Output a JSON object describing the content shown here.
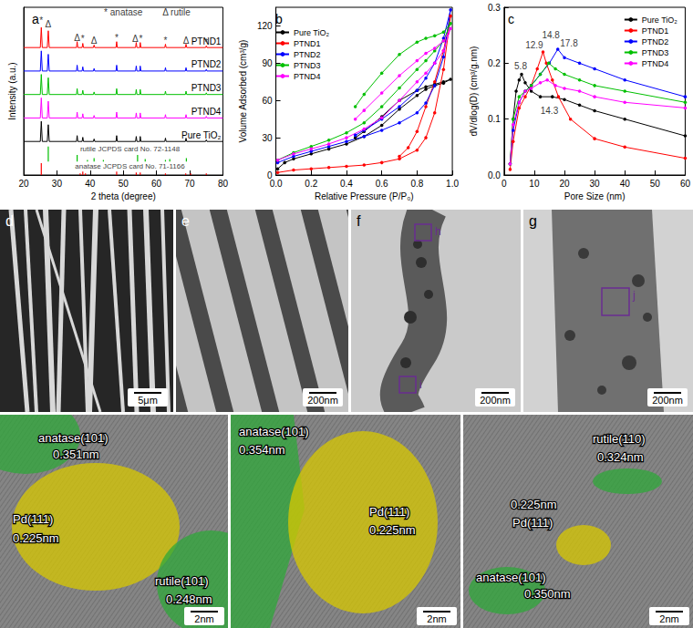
{
  "chart_data": [
    {
      "panel": "a",
      "type": "line",
      "x_label": "2 theta (degree)",
      "y_label": "Intensity (a.u.)",
      "xlim": [
        20,
        80
      ],
      "xticks": [
        20,
        30,
        40,
        50,
        60,
        70,
        80
      ],
      "ylim": [
        0,
        100
      ],
      "yticks": [],
      "tick_labels": "x",
      "grid": false,
      "marker": "none",
      "x": [
        20,
        25.0,
        25.3,
        25.6,
        27.1,
        27.4,
        27.7,
        35.9,
        36.1,
        36.3,
        37.6,
        37.8,
        38.0,
        41.0,
        41.2,
        41.4,
        47.8,
        48.0,
        48.2,
        53.7,
        53.9,
        54.1,
        55.0,
        55.1,
        55.3,
        62.5,
        62.7,
        62.9,
        68.7,
        68.9,
        69.1,
        74.8,
        75.0,
        75.2,
        80
      ],
      "series": [
        {
          "name": "PTND1",
          "color": "#ff0000",
          "values": [
            76,
            76,
            88,
            76,
            76,
            86,
            76,
            76,
            79.5,
            76,
            76,
            78.5,
            76,
            76,
            77.5,
            76,
            76,
            79.5,
            76,
            76,
            79,
            76,
            76,
            79,
            76,
            76,
            78,
            76,
            76,
            78,
            76,
            76,
            77,
            76,
            76
          ]
        },
        {
          "name": "PTND2",
          "color": "#0000ff",
          "values": [
            62,
            62,
            74,
            62,
            62,
            72,
            62,
            62,
            65.5,
            62,
            62,
            64.5,
            62,
            62,
            63.5,
            62,
            62,
            65.5,
            62,
            62,
            65,
            62,
            62,
            65,
            62,
            62,
            64,
            62,
            62,
            64,
            62,
            62,
            63,
            62,
            62
          ]
        },
        {
          "name": "PTND3",
          "color": "#00c000",
          "values": [
            48,
            48,
            60,
            48,
            48,
            58,
            48,
            48,
            51.5,
            48,
            48,
            50.5,
            48,
            48,
            49.5,
            48,
            48,
            51.5,
            48,
            48,
            51,
            48,
            48,
            51,
            48,
            48,
            50,
            48,
            48,
            50,
            48,
            48,
            49,
            48,
            48
          ]
        },
        {
          "name": "PTND4",
          "color": "#ff00ff",
          "values": [
            34,
            34,
            46,
            34,
            34,
            44,
            34,
            34,
            37.5,
            34,
            34,
            36.5,
            34,
            34,
            35.5,
            34,
            34,
            37.5,
            34,
            34,
            37,
            34,
            34,
            37,
            34,
            34,
            36,
            34,
            34,
            36,
            34,
            34,
            35,
            34,
            34
          ]
        },
        {
          "name": "Pure TiO₂",
          "color": "#000000",
          "values": [
            20,
            20,
            32,
            20,
            20,
            30,
            20,
            20,
            23.5,
            20,
            20,
            22.5,
            20,
            20,
            21.5,
            20,
            20,
            23.5,
            20,
            20,
            23,
            20,
            20,
            23,
            20,
            20,
            22,
            20,
            20,
            22,
            20,
            20,
            21,
            20,
            20
          ]
        }
      ],
      "references": [
        {
          "label": {
            "text": "rutile JCPDS card No. 72-1148",
            "x": 52,
            "y": 15.5
          },
          "color": "#00c000",
          "baseline": 8,
          "positions": [
            27.4,
            36.1,
            39.2,
            41.2,
            44.0,
            54.3,
            56.6,
            62.7,
            64.0,
            69.0
          ],
          "heights": [
            9,
            4,
            1,
            2,
            1,
            4,
            1.5,
            1,
            1.5,
            2
          ]
        },
        {
          "label": {
            "text": "anatase JCPDS card No. 71-1166",
            "x": 52,
            "y": 5
          },
          "color": "#ff0000",
          "baseline": 0,
          "positions": [
            25.3,
            37.0,
            37.8,
            38.6,
            48.0,
            53.9,
            55.1,
            62.7,
            68.8,
            70.3,
            75.0
          ],
          "heights": [
            7,
            1,
            2,
            1,
            2,
            1.5,
            1.5,
            1,
            1,
            1,
            1
          ]
        }
      ],
      "annotations": [
        {
          "text": "* anatase",
          "x": 50,
          "y": 97
        },
        {
          "text": "Δ rutile",
          "x": 66,
          "y": 97
        },
        {
          "text": "*",
          "x": 25.3,
          "y": 92
        },
        {
          "text": "Δ",
          "x": 27.4,
          "y": 90
        },
        {
          "text": "Δ",
          "x": 36.1,
          "y": 82
        },
        {
          "text": "*",
          "x": 37.8,
          "y": 81
        },
        {
          "text": "Δ",
          "x": 41.2,
          "y": 80
        },
        {
          "text": "*",
          "x": 48.0,
          "y": 82
        },
        {
          "text": "Δ",
          "x": 53.6,
          "y": 81
        },
        {
          "text": "*",
          "x": 55.3,
          "y": 81
        },
        {
          "text": "*",
          "x": 62.7,
          "y": 80
        },
        {
          "text": "Δ",
          "x": 68.9,
          "y": 80
        },
        {
          "text": "*",
          "x": 75.0,
          "y": 79
        }
      ]
    },
    {
      "panel": "b",
      "type": "line",
      "x_label": "Relative Pressure (P/P₀)",
      "y_label": "Volume Adsorbed (cm³/g)",
      "xlim": [
        0,
        1
      ],
      "xticks": [
        {
          "value": 0,
          "label": "0.0"
        },
        0.2,
        0.4,
        0.6,
        0.8,
        {
          "value": 1,
          "label": "1.0"
        }
      ],
      "ylim": [
        0,
        135
      ],
      "yticks": [
        0,
        30,
        60,
        90,
        120
      ],
      "grid": false,
      "legend": "upper left",
      "marker": "circle",
      "series": [
        {
          "name": "Pure TiO₂",
          "color": "#000000",
          "x": [
            0.01,
            0.05,
            0.1,
            0.2,
            0.3,
            0.4,
            0.5,
            0.6,
            0.7,
            0.8,
            0.85,
            0.9,
            0.95,
            0.99,
            0.95,
            0.9,
            0.85,
            0.8,
            0.7,
            0.6,
            0.5,
            0.45
          ],
          "values": [
            5,
            10,
            13,
            17,
            21,
            25,
            31,
            40,
            53,
            64,
            69,
            72,
            74,
            77,
            75,
            73,
            71,
            68,
            60,
            47,
            35,
            30
          ]
        },
        {
          "name": "PTND1",
          "color": "#ff0000",
          "x": [
            0.01,
            0.1,
            0.2,
            0.3,
            0.4,
            0.5,
            0.6,
            0.7,
            0.8,
            0.85,
            0.9,
            0.95,
            0.99,
            0.95,
            0.9,
            0.85,
            0.8,
            0.75,
            0.7
          ],
          "values": [
            2,
            4,
            5,
            6,
            7,
            8,
            10,
            13,
            20,
            30,
            50,
            85,
            128,
            100,
            75,
            55,
            35,
            22,
            15
          ]
        },
        {
          "name": "PTND2",
          "color": "#0000ff",
          "x": [
            0.01,
            0.1,
            0.2,
            0.3,
            0.4,
            0.5,
            0.6,
            0.7,
            0.8,
            0.85,
            0.9,
            0.95,
            0.99,
            0.95,
            0.9,
            0.85,
            0.8,
            0.7,
            0.6,
            0.5,
            0.45
          ],
          "values": [
            10,
            15,
            19,
            23,
            27,
            31,
            36,
            42,
            50,
            58,
            72,
            95,
            133,
            110,
            90,
            78,
            68,
            55,
            45,
            36,
            32
          ]
        },
        {
          "name": "PTND3",
          "color": "#00c000",
          "x": [
            0.01,
            0.1,
            0.2,
            0.3,
            0.4,
            0.5,
            0.6,
            0.7,
            0.8,
            0.85,
            0.9,
            0.95,
            0.99,
            0.95,
            0.9,
            0.85,
            0.8,
            0.7,
            0.6,
            0.5,
            0.45
          ],
          "values": [
            12,
            18,
            23,
            28,
            34,
            42,
            55,
            70,
            85,
            92,
            100,
            108,
            122,
            115,
            112,
            110,
            107,
            97,
            82,
            65,
            55
          ]
        },
        {
          "name": "PTND4",
          "color": "#ff00ff",
          "x": [
            0.01,
            0.1,
            0.2,
            0.3,
            0.4,
            0.5,
            0.6,
            0.7,
            0.8,
            0.85,
            0.9,
            0.95,
            0.99,
            0.95,
            0.9,
            0.85,
            0.8,
            0.7,
            0.6,
            0.5,
            0.45
          ],
          "values": [
            12,
            17,
            21,
            25,
            30,
            37,
            46,
            60,
            75,
            82,
            90,
            100,
            118,
            108,
            102,
            98,
            92,
            80,
            66,
            52,
            45
          ]
        }
      ]
    },
    {
      "panel": "c",
      "type": "line",
      "x_label": "Pore Size (nm)",
      "y_label": "dV/dlog(D) (cm³/g.nm)",
      "xlim": [
        0,
        60
      ],
      "xticks": [
        0,
        10,
        20,
        30,
        40,
        50,
        60
      ],
      "ylim": [
        0,
        0.3
      ],
      "yticks": [
        {
          "value": 0,
          "label": "0.0"
        },
        0.1,
        0.2,
        0.3
      ],
      "grid": false,
      "legend": "upper right",
      "marker": "circle",
      "series": [
        {
          "name": "Pure TiO₂",
          "color": "#000000",
          "x": [
            2,
            3,
            4,
            5,
            5.8,
            7,
            9,
            12,
            16,
            20,
            25,
            30,
            40,
            60
          ],
          "values": [
            0.02,
            0.1,
            0.15,
            0.17,
            0.18,
            0.165,
            0.15,
            0.14,
            0.14,
            0.135,
            0.125,
            0.115,
            0.1,
            0.07
          ]
        },
        {
          "name": "PTND1",
          "color": "#ff0000",
          "x": [
            2,
            3,
            5,
            7,
            9,
            11,
            12.9,
            14,
            16,
            18,
            22,
            30,
            40,
            60
          ],
          "values": [
            0.01,
            0.06,
            0.12,
            0.14,
            0.16,
            0.19,
            0.22,
            0.2,
            0.17,
            0.14,
            0.1,
            0.065,
            0.05,
            0.03
          ]
        },
        {
          "name": "PTND2",
          "color": "#0000ff",
          "x": [
            2,
            3,
            5,
            7,
            9,
            12,
            15,
            17.8,
            20,
            25,
            30,
            40,
            60
          ],
          "values": [
            0.02,
            0.08,
            0.13,
            0.15,
            0.16,
            0.18,
            0.2,
            0.225,
            0.21,
            0.2,
            0.19,
            0.17,
            0.14
          ]
        },
        {
          "name": "PTND3",
          "color": "#00c000",
          "x": [
            2,
            3,
            5,
            7,
            9,
            12,
            14.8,
            17,
            20,
            25,
            30,
            40,
            60
          ],
          "values": [
            0.02,
            0.1,
            0.14,
            0.15,
            0.16,
            0.18,
            0.2,
            0.19,
            0.18,
            0.17,
            0.16,
            0.15,
            0.13
          ]
        },
        {
          "name": "PTND4",
          "color": "#ff00ff",
          "x": [
            2,
            3,
            5,
            7,
            9,
            12,
            14.3,
            17,
            20,
            25,
            30,
            40,
            60
          ],
          "values": [
            0.02,
            0.09,
            0.13,
            0.15,
            0.155,
            0.165,
            0.17,
            0.16,
            0.155,
            0.15,
            0.14,
            0.13,
            0.12
          ]
        }
      ],
      "annotations": [
        {
          "text": "5.8",
          "x": 5.5,
          "y": 0.195
        },
        {
          "text": "12.9",
          "x": 10,
          "y": 0.232
        },
        {
          "text": "14.8",
          "x": 15.5,
          "y": 0.25
        },
        {
          "text": "17.8",
          "x": 21.5,
          "y": 0.235
        },
        {
          "text": "14.3",
          "x": 15,
          "y": 0.115
        }
      ]
    }
  ],
  "micrographs": [
    {
      "panel": "d",
      "scale_bar": "5μm"
    },
    {
      "panel": "e",
      "scale_bar": "200nm"
    },
    {
      "panel": "f",
      "scale_bar": "200nm",
      "boxes": [
        "h",
        "i"
      ]
    },
    {
      "panel": "g",
      "scale_bar": "200nm",
      "boxes": [
        "j"
      ]
    },
    {
      "scale_bar": "2nm",
      "regions": [
        {
          "phase": "anatase(101)",
          "d_spacing": "0.351nm",
          "color": "#2fa83a"
        },
        {
          "phase": "Pd(111)",
          "d_spacing": "0.225nm",
          "color": "#d8c800"
        },
        {
          "phase": "rutile(101)",
          "d_spacing": "0.248nm",
          "color": "#2fa83a"
        }
      ]
    },
    {
      "scale_bar": "2nm",
      "regions": [
        {
          "phase": "anatase(101)",
          "d_spacing": "0.354nm",
          "color": "#2fa83a"
        },
        {
          "phase": "Pd(111)",
          "d_spacing": "0.225nm",
          "color": "#d8c800"
        }
      ]
    },
    {
      "scale_bar": "2nm",
      "regions": [
        {
          "phase": "rutile(110)",
          "d_spacing": "0.324nm",
          "color": "#2fa83a"
        },
        {
          "phase": "Pd(111)",
          "d_spacing": "0.225nm",
          "color": "#d8c800"
        },
        {
          "phase": "anatase(101)",
          "d_spacing": "0.350nm",
          "color": "#2fa83a"
        }
      ]
    }
  ]
}
